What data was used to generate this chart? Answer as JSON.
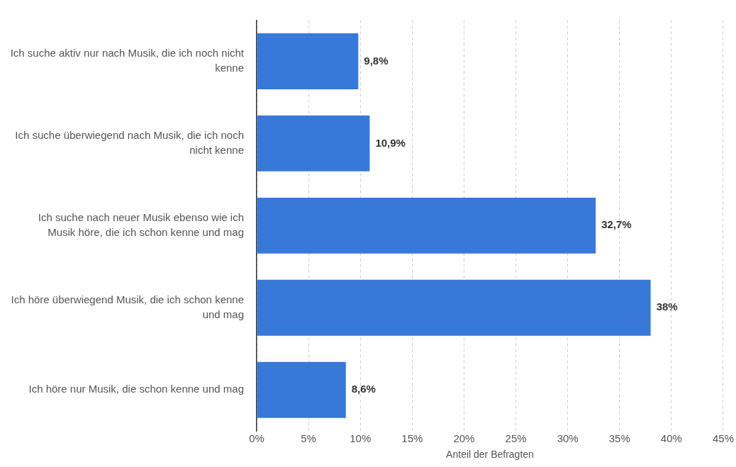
{
  "chart_data": {
    "type": "bar",
    "orientation": "horizontal",
    "xlabel": "Anteil der Befragten",
    "categories": [
      "Ich suche aktiv nur nach Musik, die ich noch nicht kenne",
      "Ich suche überwiegend nach Musik, die ich noch nicht kenne",
      "Ich suche nach neuer Musik ebenso wie ich Musik höre, die ich schon kenne und mag",
      "Ich höre überwiegend Musik, die ich schon kenne und mag",
      "Ich höre nur Musik, die schon kenne und mag"
    ],
    "values": [
      9.8,
      10.9,
      32.7,
      38,
      8.6
    ],
    "value_labels": [
      "9,8%",
      "10,9%",
      "32,7%",
      "38%",
      "8,6%"
    ],
    "color": "#3778d8",
    "xlim": [
      0,
      45
    ],
    "xticks": [
      {
        "value": 0,
        "label": "0%"
      },
      {
        "value": 5,
        "label": "5%"
      },
      {
        "value": 10,
        "label": "10%"
      },
      {
        "value": 15,
        "label": "15%"
      },
      {
        "value": 20,
        "label": "20%"
      },
      {
        "value": 25,
        "label": "25%"
      },
      {
        "value": 30,
        "label": "30%"
      },
      {
        "value": 35,
        "label": "35%"
      },
      {
        "value": 40,
        "label": "40%"
      },
      {
        "value": 45,
        "label": "45%"
      }
    ],
    "grid": "x",
    "legend": false
  }
}
